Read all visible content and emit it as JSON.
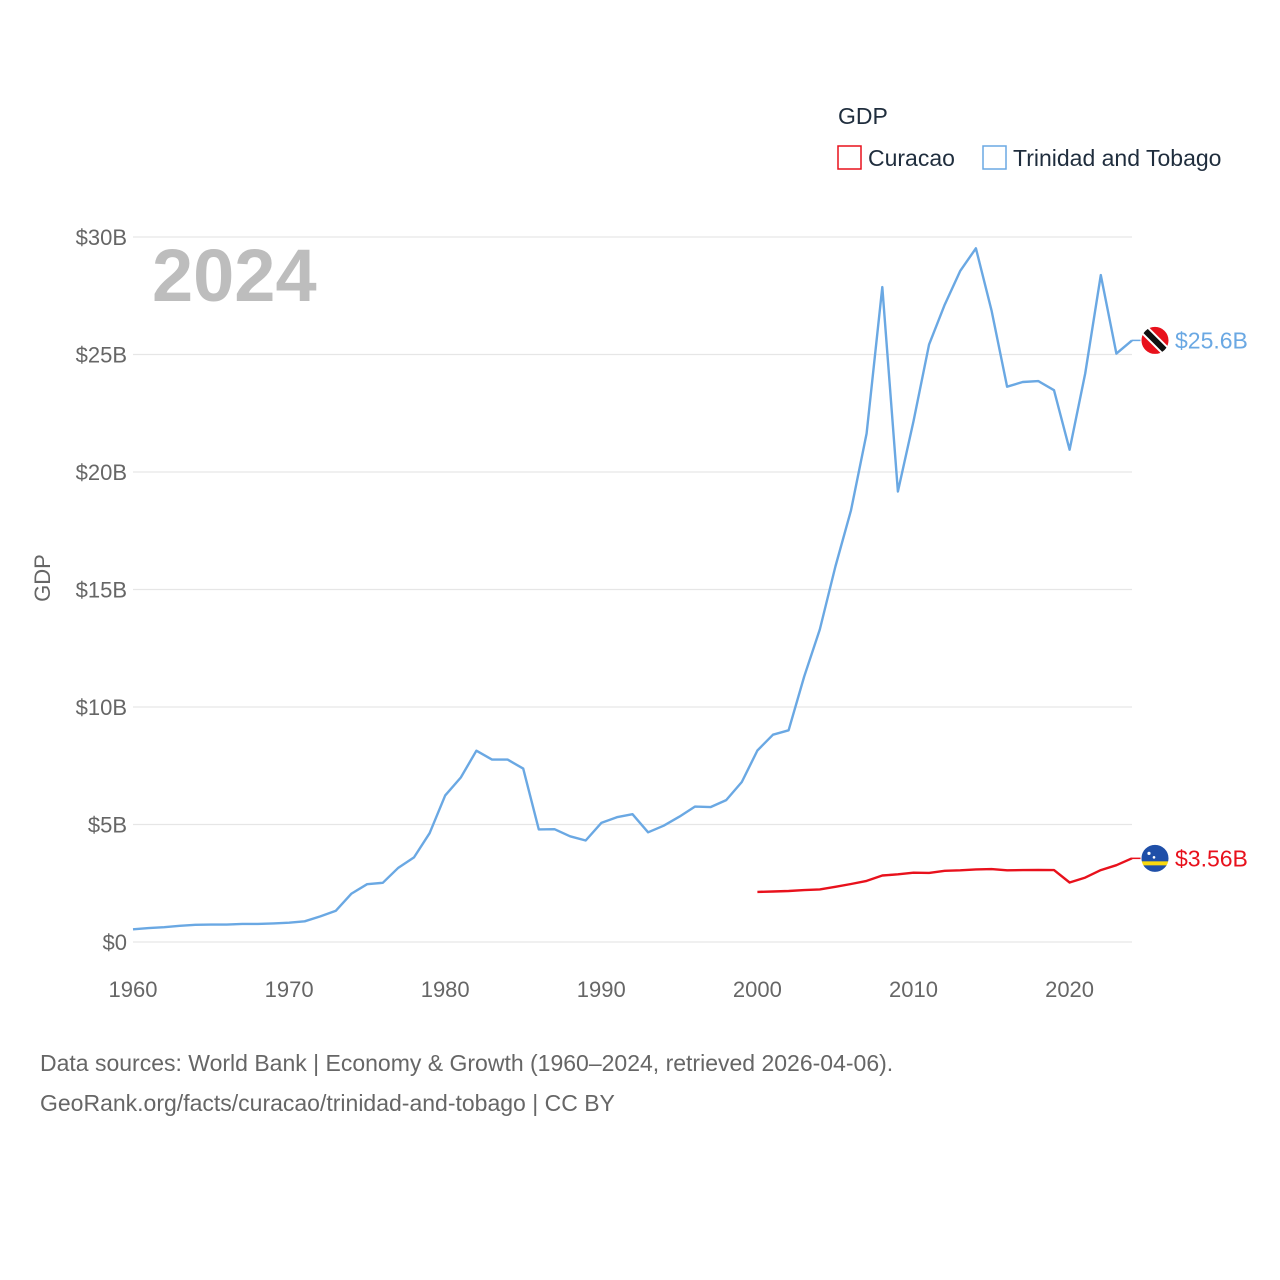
{
  "chart_data": {
    "type": "line",
    "title": "",
    "ylabel": "GDP",
    "xlabel": "",
    "year_label": "2024",
    "xlim": [
      1960,
      2024
    ],
    "ylim": [
      0,
      30
    ],
    "xticks": [
      1960,
      1970,
      1980,
      1990,
      2000,
      2010,
      2020
    ],
    "yticks": [
      {
        "value": 0,
        "label": "$0"
      },
      {
        "value": 5,
        "label": "$5B"
      },
      {
        "value": 10,
        "label": "$10B"
      },
      {
        "value": 15,
        "label": "$15B"
      },
      {
        "value": 20,
        "label": "$20B"
      },
      {
        "value": 25,
        "label": "$25B"
      },
      {
        "value": 30,
        "label": "$30B"
      }
    ],
    "legend": {
      "title": "GDP",
      "position": "top-right",
      "items": [
        {
          "name": "Curacao",
          "color": "#e8111c"
        },
        {
          "name": "Trinidad and Tobago",
          "color": "#6aa8e3"
        }
      ]
    },
    "series": [
      {
        "name": "Trinidad and Tobago",
        "color": "#6aa8e3",
        "end_label": "$25.6B",
        "flag_icon": "trinidad-and-tobago-flag-icon",
        "x": [
          1960,
          1961,
          1962,
          1963,
          1964,
          1965,
          1966,
          1967,
          1968,
          1969,
          1970,
          1971,
          1972,
          1973,
          1974,
          1975,
          1976,
          1977,
          1978,
          1979,
          1980,
          1981,
          1982,
          1983,
          1984,
          1985,
          1986,
          1987,
          1988,
          1989,
          1990,
          1991,
          1992,
          1993,
          1994,
          1995,
          1996,
          1997,
          1998,
          1999,
          2000,
          2001,
          2002,
          2003,
          2004,
          2005,
          2006,
          2007,
          2008,
          2009,
          2010,
          2011,
          2012,
          2013,
          2014,
          2015,
          2016,
          2017,
          2018,
          2019,
          2020,
          2021,
          2022,
          2023,
          2024
        ],
        "values": [
          0.54,
          0.59,
          0.63,
          0.69,
          0.73,
          0.74,
          0.74,
          0.77,
          0.77,
          0.79,
          0.82,
          0.88,
          1.09,
          1.33,
          2.06,
          2.46,
          2.52,
          3.16,
          3.6,
          4.63,
          6.24,
          7.0,
          8.14,
          7.76,
          7.76,
          7.38,
          4.79,
          4.8,
          4.5,
          4.32,
          5.07,
          5.31,
          5.44,
          4.67,
          4.95,
          5.33,
          5.76,
          5.74,
          6.04,
          6.81,
          8.15,
          8.82,
          9.01,
          11.3,
          13.3,
          15.98,
          18.37,
          21.64,
          27.87,
          19.17,
          22.16,
          25.43,
          27.12,
          28.56,
          29.52,
          26.88,
          23.63,
          23.83,
          23.87,
          23.48,
          20.95,
          24.19,
          28.38,
          25.04,
          25.6
        ]
      },
      {
        "name": "Curacao",
        "color": "#e8111c",
        "end_label": "$3.56B",
        "flag_icon": "curacao-flag-icon",
        "x": [
          2000,
          2001,
          2002,
          2003,
          2004,
          2005,
          2006,
          2007,
          2008,
          2009,
          2010,
          2011,
          2012,
          2013,
          2014,
          2015,
          2016,
          2017,
          2018,
          2019,
          2020,
          2021,
          2022,
          2023,
          2024
        ],
        "values": [
          2.13,
          2.15,
          2.17,
          2.21,
          2.24,
          2.35,
          2.47,
          2.6,
          2.83,
          2.88,
          2.95,
          2.94,
          3.03,
          3.05,
          3.09,
          3.1,
          3.05,
          3.06,
          3.07,
          3.06,
          2.53,
          2.74,
          3.06,
          3.27,
          3.56
        ]
      }
    ]
  },
  "source": {
    "line1": "Data sources: World Bank | Economy & Growth (1960–2024, retrieved 2026-04-06).",
    "line2": "GeoRank.org/facts/curacao/trinidad-and-tobago | CC BY"
  }
}
